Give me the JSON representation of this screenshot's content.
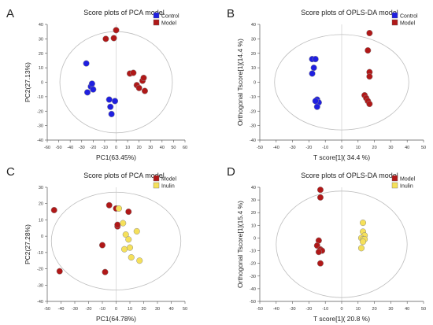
{
  "chart_data": [
    {
      "type": "scatter",
      "panel_label": "A",
      "title": "Score plots of PCA model",
      "xlabel": "PC1(63.45%)",
      "ylabel": "PC2(27.13%)",
      "xlim": [
        -60,
        60
      ],
      "ylim": [
        -40,
        40
      ],
      "xticks": [
        -60,
        -50,
        -40,
        -30,
        -20,
        -10,
        0,
        10,
        20,
        30,
        40,
        50,
        60
      ],
      "yticks": [
        -40,
        -30,
        -20,
        -10,
        0,
        10,
        20,
        30,
        40
      ],
      "ellipse": {
        "cx": 0,
        "cy": 0,
        "rx": 49,
        "ry": 35
      },
      "legend_position": "top-right",
      "series": [
        {
          "name": "Control",
          "color": "#1f1fe0",
          "legend_marker": "square",
          "points": [
            [
              -26,
              13
            ],
            [
              -25,
              -7
            ],
            [
              -22,
              -3
            ],
            [
              -21,
              -1
            ],
            [
              -20,
              -5
            ],
            [
              -6,
              -12
            ],
            [
              -5,
              -17
            ],
            [
              -4,
              -22
            ],
            [
              -1,
              -13
            ]
          ]
        },
        {
          "name": "Model",
          "color": "#b01818",
          "legend_marker": "square",
          "points": [
            [
              -9,
              30
            ],
            [
              -2,
              30.5
            ],
            [
              0,
              36
            ],
            [
              12,
              6
            ],
            [
              15,
              6.5
            ],
            [
              18,
              -2
            ],
            [
              20,
              -4
            ],
            [
              23,
              1
            ],
            [
              24,
              3
            ],
            [
              25,
              -6
            ]
          ]
        }
      ]
    },
    {
      "type": "scatter",
      "panel_label": "B",
      "title": "Score plots of OPLS-DA model",
      "xlabel": "T score[1]( 34.4 %)",
      "ylabel": "Orthogonal Tscore[1](14.4 %)",
      "xlim": [
        -50,
        50
      ],
      "ylim": [
        -40,
        40
      ],
      "xticks": [
        -50,
        -40,
        -30,
        -20,
        -10,
        0,
        10,
        20,
        30,
        40,
        50
      ],
      "yticks": [
        -40,
        -30,
        -20,
        -10,
        0,
        10,
        20,
        30,
        40
      ],
      "ellipse": {
        "cx": 0,
        "cy": 0,
        "rx": 41,
        "ry": 33
      },
      "legend_position": "top-right",
      "series": [
        {
          "name": "Control",
          "color": "#1f1fe0",
          "legend_marker": "square",
          "points": [
            [
              -18,
              16
            ],
            [
              -16,
              16
            ],
            [
              -17,
              10
            ],
            [
              -18,
              6
            ],
            [
              -15,
              -12
            ],
            [
              -14,
              -14
            ],
            [
              -15,
              -17
            ],
            [
              -16,
              -13
            ]
          ]
        },
        {
          "name": "Model",
          "color": "#b01818",
          "legend_marker": "square",
          "points": [
            [
              17,
              34
            ],
            [
              16,
              22
            ],
            [
              17,
              7
            ],
            [
              17,
              4
            ],
            [
              14,
              -9
            ],
            [
              15,
              -11
            ],
            [
              16,
              -13
            ],
            [
              17,
              -15
            ]
          ]
        }
      ]
    },
    {
      "type": "scatter",
      "panel_label": "C",
      "title": "Score plots of PCA model",
      "xlabel": "PC1(64.78%)",
      "ylabel": "PC2(27.28%)",
      "xlim": [
        -50,
        50
      ],
      "ylim": [
        -40,
        30
      ],
      "xticks": [
        -50,
        -40,
        -30,
        -20,
        -10,
        0,
        10,
        20,
        30,
        40,
        50
      ],
      "yticks": [
        -40,
        -30,
        -20,
        -10,
        0,
        10,
        20,
        30
      ],
      "ellipse": {
        "cx": 0,
        "cy": -3,
        "rx": 47,
        "ry": 30
      },
      "legend_position": "top-right",
      "series": [
        {
          "name": "Model",
          "color": "#b01818",
          "legend_marker": "square",
          "points": [
            [
              -45,
              16
            ],
            [
              -41,
              -21.5
            ],
            [
              -10,
              -5.5
            ],
            [
              -8,
              -22
            ],
            [
              -5,
              19
            ],
            [
              0,
              17
            ],
            [
              1,
              6
            ],
            [
              1,
              7
            ],
            [
              9,
              15
            ]
          ]
        },
        {
          "name": "Inulin",
          "color": "#f5e05a",
          "legend_marker": "square",
          "points": [
            [
              2,
              17
            ],
            [
              5,
              8
            ],
            [
              7,
              1
            ],
            [
              9,
              -2
            ],
            [
              10,
              -7
            ],
            [
              6,
              -8
            ],
            [
              11,
              -13
            ],
            [
              15,
              3
            ],
            [
              17,
              -15
            ]
          ]
        }
      ]
    },
    {
      "type": "scatter",
      "panel_label": "D",
      "title": "Score plots of OPLS-DA model",
      "xlabel": "T score[1]( 20.8 %)",
      "ylabel": "Orthogonal Tscore[1](15.4 %)",
      "xlim": [
        -50,
        50
      ],
      "ylim": [
        -50,
        40
      ],
      "xticks": [
        -50,
        -40,
        -30,
        -20,
        -10,
        0,
        10,
        20,
        30,
        40,
        50
      ],
      "yticks": [
        -50,
        -40,
        -30,
        -20,
        -10,
        0,
        10,
        20,
        30,
        40
      ],
      "ellipse": {
        "cx": 0,
        "cy": -5,
        "rx": 40,
        "ry": 42
      },
      "legend_position": "top-right",
      "series": [
        {
          "name": "Model",
          "color": "#b01818",
          "legend_marker": "square",
          "points": [
            [
              -13,
              38
            ],
            [
              -13,
              32
            ],
            [
              -14,
              -2
            ],
            [
              -15,
              -6
            ],
            [
              -13,
              -9
            ],
            [
              -12,
              -10
            ],
            [
              -14,
              -11
            ],
            [
              -13,
              -20
            ]
          ]
        },
        {
          "name": "Inulin",
          "color": "#f5e05a",
          "legend_marker": "square",
          "points": [
            [
              13,
              12
            ],
            [
              13,
              5
            ],
            [
              14,
              2
            ],
            [
              12,
              0
            ],
            [
              13,
              -1
            ],
            [
              14,
              -1
            ],
            [
              13,
              -3
            ],
            [
              12,
              -8
            ]
          ]
        }
      ]
    }
  ]
}
